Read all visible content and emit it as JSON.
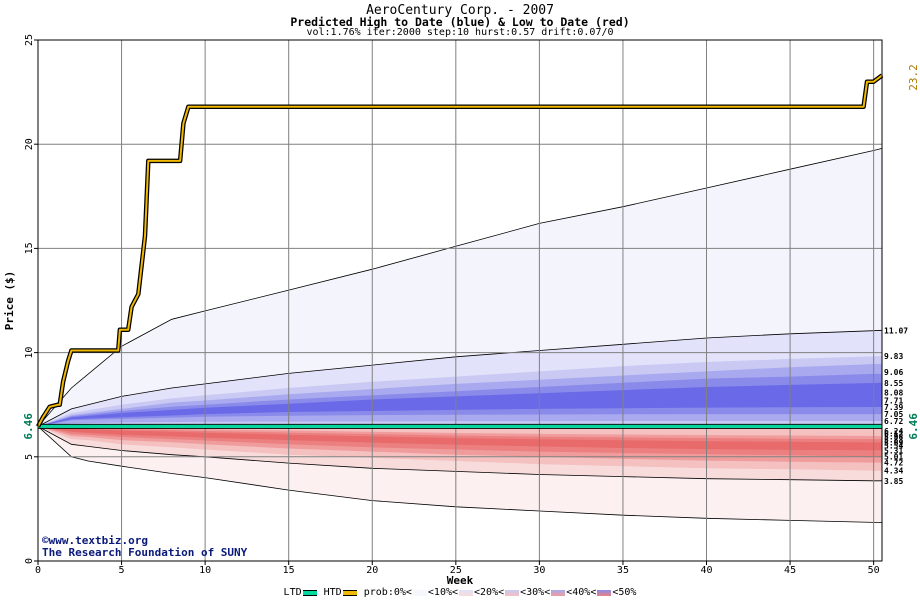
{
  "header": {
    "title": "AeroCentury Corp. - 2007",
    "subtitle": "Predicted High to Date (blue) &  Low to Date (red)",
    "params": "vol:1.76% iter:2000 step:10 hurst:0.57 drift:0.07/0"
  },
  "credits": {
    "line1": "©www.textbiz.org",
    "line2": "The Research Foundation of SUNY"
  },
  "legend": {
    "ltd": "LTD",
    "htd": "HTD",
    "prob_prefix": "prob:",
    "bands": [
      "0%<",
      "<10%<",
      "<20%<",
      "<30%<",
      "<40%<",
      "<50%"
    ]
  },
  "chart_data": {
    "type": "area",
    "xlabel": "Week",
    "ylabel": "Price ($)",
    "xlim": [
      0,
      50.5
    ],
    "ylim": [
      0,
      25
    ],
    "x_ticks": [
      0,
      5,
      10,
      15,
      20,
      25,
      30,
      35,
      40,
      45,
      50
    ],
    "y_ticks": [
      0,
      5,
      10,
      15,
      20,
      25
    ],
    "grid": true,
    "current_price": 6.46,
    "current_price_label": "6.46",
    "htd_max_label": "23.2",
    "historical_high": {
      "name": "HTD",
      "color": "#f0b800",
      "points": [
        [
          0,
          6.46
        ],
        [
          0.3,
          6.9
        ],
        [
          0.7,
          7.4
        ],
        [
          1.2,
          7.5
        ],
        [
          1.3,
          7.5
        ],
        [
          1.5,
          8.6
        ],
        [
          1.8,
          9.6
        ],
        [
          2.0,
          10.1
        ],
        [
          4.8,
          10.1
        ],
        [
          4.9,
          11.1
        ],
        [
          5.4,
          11.1
        ],
        [
          5.6,
          12.2
        ],
        [
          6.0,
          12.8
        ],
        [
          6.4,
          15.6
        ],
        [
          6.6,
          19.2
        ],
        [
          8.5,
          19.2
        ],
        [
          8.7,
          21.0
        ],
        [
          9.0,
          21.8
        ],
        [
          49.4,
          21.8
        ],
        [
          49.6,
          23.0
        ],
        [
          50.0,
          23.0
        ],
        [
          50.5,
          23.3
        ]
      ]
    },
    "upper_bands": {
      "x": [
        0,
        2,
        5,
        8,
        10,
        15,
        20,
        25,
        30,
        35,
        40,
        45,
        50,
        50.5
      ],
      "series": [
        {
          "name": "0%",
          "color": "#f4f4fd",
          "values": [
            6.46,
            8.3,
            10.3,
            11.6,
            12.0,
            13.0,
            14.0,
            15.1,
            16.2,
            17.0,
            17.9,
            18.8,
            19.7,
            19.8
          ]
        },
        {
          "name": "10%",
          "color": "#e2e2fa",
          "values": [
            6.46,
            7.3,
            7.9,
            8.3,
            8.5,
            9.0,
            9.4,
            9.8,
            10.1,
            10.4,
            10.7,
            10.9,
            11.05,
            11.07
          ]
        },
        {
          "name": "20%",
          "color": "#c9c9f4",
          "values": [
            6.46,
            7.1,
            7.5,
            7.8,
            7.95,
            8.3,
            8.6,
            8.85,
            9.1,
            9.35,
            9.55,
            9.7,
            9.82,
            9.83
          ]
        },
        {
          "name": "30%",
          "color": "#a9a9ef",
          "values": [
            6.46,
            7.0,
            7.3,
            7.6,
            7.7,
            8.0,
            8.25,
            8.5,
            8.7,
            8.9,
            9.1,
            9.3,
            9.45,
            9.46
          ]
        },
        {
          "name": "40%",
          "color": "#8a8aeb",
          "values": [
            6.46,
            6.95,
            7.2,
            7.4,
            7.5,
            7.75,
            7.95,
            8.15,
            8.35,
            8.55,
            8.75,
            8.85,
            8.98,
            8.98
          ]
        },
        {
          "name": "50%",
          "color": "#6a6ae8",
          "values": [
            6.46,
            6.9,
            7.1,
            7.25,
            7.35,
            7.55,
            7.75,
            7.9,
            8.05,
            8.2,
            8.35,
            8.45,
            8.54,
            8.55
          ]
        },
        {
          "name": "60%",
          "color": "#6a6ae8",
          "values": [
            6.46,
            6.85,
            7.0,
            7.1,
            7.2,
            7.35,
            7.45,
            7.55,
            7.62,
            7.66,
            7.68,
            7.7,
            7.71,
            7.71
          ]
        },
        {
          "name": "70%",
          "color": "#8a8aeb",
          "values": [
            6.46,
            6.8,
            6.9,
            6.98,
            7.05,
            7.15,
            7.2,
            7.25,
            7.3,
            7.33,
            7.36,
            7.38,
            7.39,
            7.39
          ]
        },
        {
          "name": "80%",
          "color": "#a9a9ef",
          "values": [
            6.46,
            6.75,
            6.82,
            6.88,
            6.92,
            6.97,
            7.0,
            7.02,
            7.03,
            7.04,
            7.05,
            7.05,
            7.05,
            7.05
          ]
        },
        {
          "name": "90%",
          "color": "#c9c9f4",
          "values": [
            6.46,
            6.6,
            6.65,
            6.67,
            6.68,
            6.69,
            6.7,
            6.71,
            6.71,
            6.72,
            6.72,
            6.72,
            6.72,
            6.72
          ]
        }
      ]
    },
    "lower_bands": {
      "x": [
        0,
        2,
        3,
        5,
        8,
        10,
        15,
        20,
        25,
        30,
        35,
        40,
        45,
        50,
        50.5
      ],
      "series": [
        {
          "name": "0%",
          "color": "#fcf0f0",
          "values": [
            6.46,
            5.0,
            4.8,
            4.55,
            4.2,
            4.0,
            3.4,
            2.9,
            2.6,
            2.4,
            2.2,
            2.05,
            1.95,
            1.85,
            1.85
          ]
        },
        {
          "name": "10%",
          "color": "#f8dcdc",
          "values": [
            6.46,
            5.6,
            5.5,
            5.3,
            5.1,
            5.0,
            4.7,
            4.45,
            4.3,
            4.15,
            4.05,
            3.95,
            3.9,
            3.85,
            3.85
          ]
        },
        {
          "name": "20%",
          "color": "#f4c0c0",
          "values": [
            6.46,
            5.85,
            5.8,
            5.6,
            5.45,
            5.35,
            5.1,
            4.95,
            4.8,
            4.65,
            4.55,
            4.45,
            4.4,
            4.34,
            4.34
          ]
        },
        {
          "name": "30%",
          "color": "#f09c9c",
          "values": [
            6.46,
            6.0,
            5.95,
            5.8,
            5.7,
            5.6,
            5.4,
            5.25,
            5.1,
            5.0,
            4.9,
            4.82,
            4.76,
            4.72,
            4.72
          ]
        },
        {
          "name": "40%",
          "color": "#ec8080",
          "values": [
            6.46,
            6.1,
            6.05,
            5.95,
            5.85,
            5.78,
            5.6,
            5.45,
            5.35,
            5.25,
            5.18,
            5.12,
            5.07,
            5.01,
            5.01
          ]
        },
        {
          "name": "50%",
          "color": "#e86a6a",
          "values": [
            6.46,
            6.2,
            6.15,
            6.05,
            5.98,
            5.92,
            5.8,
            5.68,
            5.58,
            5.5,
            5.42,
            5.37,
            5.33,
            5.31,
            5.31
          ]
        },
        {
          "name": "60%",
          "color": "#e86a6a",
          "values": [
            6.46,
            6.28,
            6.25,
            6.17,
            6.1,
            6.05,
            5.95,
            5.85,
            5.76,
            5.7,
            5.65,
            5.6,
            5.57,
            5.54,
            5.54
          ]
        },
        {
          "name": "70%",
          "color": "#ec8080",
          "values": [
            6.46,
            6.35,
            6.32,
            6.26,
            6.2,
            6.15,
            6.06,
            5.98,
            5.9,
            5.84,
            5.79,
            5.75,
            5.72,
            5.69,
            5.69
          ]
        },
        {
          "name": "80%",
          "color": "#f09c9c",
          "values": [
            6.46,
            6.4,
            6.38,
            6.33,
            6.28,
            6.24,
            6.16,
            6.09,
            6.02,
            5.97,
            5.93,
            5.9,
            5.87,
            5.85,
            5.85
          ]
        },
        {
          "name": "90%",
          "color": "#f4c0c0",
          "values": [
            6.46,
            6.43,
            6.42,
            6.39,
            6.35,
            6.32,
            6.26,
            6.2,
            6.14,
            6.1,
            6.07,
            6.04,
            6.02,
            6.0,
            6.0
          ]
        }
      ]
    },
    "right_labels": [
      {
        "value": 11.07,
        "text": "11.07"
      },
      {
        "value": 9.83,
        "text": "9.83"
      },
      {
        "value": 9.06,
        "text": "9.06"
      },
      {
        "value": 8.55,
        "text": "8.55"
      },
      {
        "value": 8.08,
        "text": "8.08"
      },
      {
        "value": 7.71,
        "text": "7.71"
      },
      {
        "value": 7.39,
        "text": "7.39"
      },
      {
        "value": 7.05,
        "text": "7.05"
      },
      {
        "value": 6.72,
        "text": "6.72"
      },
      {
        "value": 6.24,
        "text": "6.24"
      },
      {
        "value": 6.12,
        "text": "6.12"
      },
      {
        "value": 5.98,
        "text": "5.98"
      },
      {
        "value": 5.83,
        "text": "5.83"
      },
      {
        "value": 5.69,
        "text": "5.69"
      },
      {
        "value": 5.54,
        "text": "5.54"
      },
      {
        "value": 5.31,
        "text": "5.31"
      },
      {
        "value": 5.01,
        "text": "5.01"
      },
      {
        "value": 4.72,
        "text": "4.72"
      },
      {
        "value": 4.34,
        "text": "4.34"
      },
      {
        "value": 3.85,
        "text": "3.85"
      }
    ]
  }
}
